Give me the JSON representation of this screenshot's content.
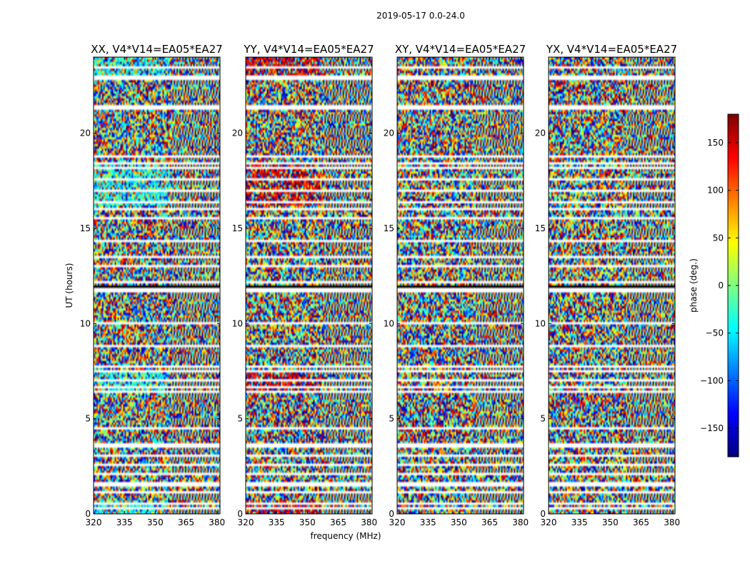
{
  "figure": {
    "suptitle": "2019-05-17 0.0-24.0",
    "xlabel": "frequency (MHz)",
    "ylabel": "UT (hours)"
  },
  "chart_data": {
    "type": "heatmap",
    "title": "2019-05-17 0.0-24.0",
    "xlabel": "frequency (MHz)",
    "ylabel": "UT (hours)",
    "xlim": [
      320,
      381.5
    ],
    "ylim": [
      0,
      24
    ],
    "xticks": [
      320,
      335,
      350,
      365,
      380
    ],
    "yticks": [
      0,
      5,
      10,
      15,
      20
    ],
    "panels": [
      {
        "title": "XX, V4*V14=EA05*EA27",
        "pol": "XX",
        "bias_deg": -40,
        "coherence": 0.55
      },
      {
        "title": "YY, V4*V14=EA05*EA27",
        "pol": "YY",
        "bias_deg": 150,
        "coherence": 0.55
      },
      {
        "title": "XY, V4*V14=EA05*EA27",
        "pol": "XY",
        "bias_deg": 0,
        "coherence": 0.0
      },
      {
        "title": "YX, V4*V14=EA05*EA27",
        "pol": "YX",
        "bias_deg": 0,
        "coherence": 0.0
      }
    ],
    "flagged_ut_hours": [
      0.3,
      0.45,
      1.1,
      1.45,
      1.55,
      2.05,
      2.5,
      3.05,
      3.5,
      3.65,
      4.45,
      6.35,
      6.6,
      7.05,
      7.5,
      7.7,
      8.85,
      10.05,
      11.65,
      11.85,
      12.2,
      13.05,
      13.55,
      14.4,
      15.55,
      16.0,
      16.35,
      17.05,
      17.6,
      18.25,
      18.45,
      18.85,
      21.35,
      21.5,
      22.95,
      23.05,
      23.5
    ],
    "colorbar": {
      "label": "phase (deg.)",
      "vmin": -180,
      "vmax": 180,
      "ticks": [
        150,
        100,
        50,
        0,
        -50,
        -100,
        -150
      ],
      "colormap": "jet"
    }
  }
}
